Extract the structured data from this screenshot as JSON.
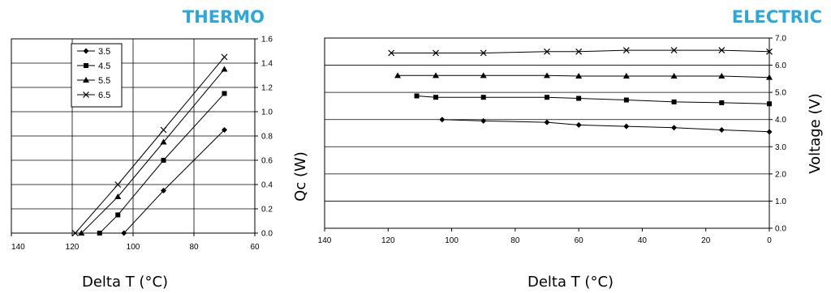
{
  "colors": {
    "title": "#2aa8dc",
    "axis": "#000000",
    "series": "#000000",
    "background": "#ffffff"
  },
  "chart_data": [
    {
      "id": "thermo",
      "type": "line",
      "title": "THERMO",
      "xlabel": "Delta T (°C)",
      "ylabel": "Qc (W)",
      "xlim": [
        140,
        60
      ],
      "ylim": [
        0,
        1.6
      ],
      "x_ticks": [
        "140",
        "120",
        "100",
        "80",
        "60"
      ],
      "y_ticks": [
        "0.0",
        "0.2",
        "0.4",
        "0.6",
        "0.8",
        "1.0",
        "1.2",
        "1.4",
        "1.6"
      ],
      "x_tick_values": [
        140,
        120,
        100,
        80,
        60
      ],
      "y_tick_values": [
        0,
        0.2,
        0.4,
        0.6,
        0.8,
        1.0,
        1.2,
        1.4,
        1.6
      ],
      "y_axis_side": "right",
      "grid": true,
      "legend": "top-left",
      "series": [
        {
          "name": "3.5",
          "marker": "diamond",
          "x": [
            103,
            90,
            70
          ],
          "y": [
            0,
            0.35,
            0.85
          ]
        },
        {
          "name": "4.5",
          "marker": "square",
          "x": [
            111,
            105,
            90,
            70
          ],
          "y": [
            0,
            0.15,
            0.6,
            1.15
          ]
        },
        {
          "name": "5.5",
          "marker": "triangle",
          "x": [
            117,
            105,
            90,
            70
          ],
          "y": [
            0,
            0.3,
            0.75,
            1.35
          ]
        },
        {
          "name": "6.5",
          "marker": "x",
          "x": [
            119,
            105,
            90,
            70
          ],
          "y": [
            0,
            0.4,
            0.85,
            1.45
          ]
        }
      ]
    },
    {
      "id": "electric",
      "type": "line",
      "title": "ELECTRIC",
      "xlabel": "Delta T (°C)",
      "ylabel": "Voltage (V)",
      "xlim": [
        140,
        0
      ],
      "ylim": [
        0,
        7
      ],
      "x_ticks": [
        "140",
        "120",
        "100",
        "80",
        "60",
        "40",
        "20",
        "0"
      ],
      "y_ticks": [
        "0.0",
        "1.0",
        "2.0",
        "3.0",
        "4.0",
        "5.0",
        "6.0",
        "7.0"
      ],
      "x_tick_values": [
        140,
        120,
        100,
        80,
        60,
        40,
        20,
        0
      ],
      "y_tick_values": [
        0,
        1,
        2,
        3,
        4,
        5,
        6,
        7
      ],
      "y_axis_side": "right",
      "grid": true,
      "legend": "none",
      "series": [
        {
          "marker": "diamond",
          "x": [
            103,
            90,
            70,
            60,
            45,
            30,
            15,
            0
          ],
          "y": [
            4.0,
            3.95,
            3.9,
            3.8,
            3.75,
            3.7,
            3.62,
            3.55
          ]
        },
        {
          "marker": "square",
          "x": [
            111,
            105,
            90,
            70,
            60,
            45,
            30,
            15,
            0
          ],
          "y": [
            4.87,
            4.82,
            4.82,
            4.82,
            4.78,
            4.72,
            4.65,
            4.62,
            4.58
          ]
        },
        {
          "marker": "triangle",
          "x": [
            117,
            105,
            90,
            70,
            60,
            45,
            30,
            15,
            0
          ],
          "y": [
            5.62,
            5.62,
            5.62,
            5.62,
            5.6,
            5.6,
            5.6,
            5.6,
            5.55
          ]
        },
        {
          "marker": "x",
          "x": [
            119,
            105,
            90,
            70,
            60,
            45,
            30,
            15,
            0
          ],
          "y": [
            6.45,
            6.45,
            6.45,
            6.5,
            6.5,
            6.55,
            6.55,
            6.55,
            6.5
          ]
        }
      ]
    }
  ]
}
